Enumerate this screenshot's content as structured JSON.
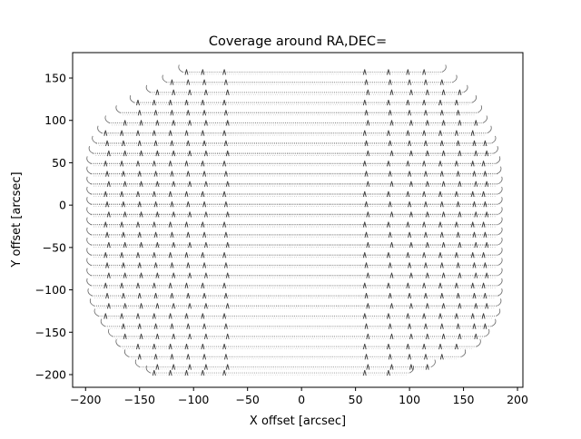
{
  "chart_data": {
    "type": "scatter",
    "title": "Coverage around RA,DEC=",
    "xlabel": "X offset [arcsec]",
    "ylabel": "Y offset [arcsec]",
    "xlim": [
      -212,
      205
    ],
    "ylim": [
      -215,
      180
    ],
    "xticks": [
      -200,
      -150,
      -100,
      -50,
      0,
      50,
      100,
      150,
      200
    ],
    "yticks": [
      -200,
      -150,
      -100,
      -50,
      0,
      50,
      100,
      150
    ],
    "xtick_labels": [
      "−200",
      "−150",
      "−100",
      "−50",
      "0",
      "50",
      "100",
      "150",
      "200"
    ],
    "ytick_labels": [
      "−200",
      "−150",
      "−100",
      "−50",
      "0",
      "50",
      "100",
      "150"
    ],
    "grid": false,
    "marker_color": "#000000",
    "scan_row_spacing_arcsec": 12,
    "scan_rows": [
      {
        "y": 157,
        "x_start": -110,
        "x_end": 130
      },
      {
        "y": 145,
        "x_start": -125,
        "x_end": 140
      },
      {
        "y": 133,
        "x_start": -140,
        "x_end": 150
      },
      {
        "y": 121,
        "x_start": -155,
        "x_end": 158
      },
      {
        "y": 109,
        "x_start": -168,
        "x_end": 163
      },
      {
        "y": 97,
        "x_start": -178,
        "x_end": 168
      },
      {
        "y": 85,
        "x_start": -185,
        "x_end": 172
      },
      {
        "y": 73,
        "x_start": -190,
        "x_end": 176
      },
      {
        "y": 61,
        "x_start": -193,
        "x_end": 178
      },
      {
        "y": 49,
        "x_start": -195,
        "x_end": 180
      },
      {
        "y": 37,
        "x_start": -195,
        "x_end": 181
      },
      {
        "y": 25,
        "x_start": -195,
        "x_end": 182
      },
      {
        "y": 13,
        "x_start": -195,
        "x_end": 182
      },
      {
        "y": 1,
        "x_start": -195,
        "x_end": 182
      },
      {
        "y": -11,
        "x_start": -195,
        "x_end": 182
      },
      {
        "y": -23,
        "x_start": -195,
        "x_end": 182
      },
      {
        "y": -35,
        "x_start": -195,
        "x_end": 182
      },
      {
        "y": -47,
        "x_start": -195,
        "x_end": 182
      },
      {
        "y": -59,
        "x_start": -195,
        "x_end": 182
      },
      {
        "y": -71,
        "x_start": -195,
        "x_end": 182
      },
      {
        "y": -83,
        "x_start": -195,
        "x_end": 182
      },
      {
        "y": -95,
        "x_start": -195,
        "x_end": 182
      },
      {
        "y": -107,
        "x_start": -194,
        "x_end": 182
      },
      {
        "y": -119,
        "x_start": -192,
        "x_end": 181
      },
      {
        "y": -131,
        "x_start": -188,
        "x_end": 180
      },
      {
        "y": -143,
        "x_start": -182,
        "x_end": 176
      },
      {
        "y": -155,
        "x_start": -175,
        "x_end": 170
      },
      {
        "y": -167,
        "x_start": -168,
        "x_end": 162
      },
      {
        "y": -179,
        "x_start": -160,
        "x_end": 148
      },
      {
        "y": -191,
        "x_start": -150,
        "x_end": 120
      },
      {
        "y": -198,
        "x_start": -140,
        "x_end": 100
      }
    ],
    "turnaround_columns_x": [
      -180,
      -165,
      -150,
      -135,
      -120,
      -105,
      -90,
      -70,
      60,
      82,
      100,
      115,
      130,
      145,
      160,
      170
    ]
  }
}
